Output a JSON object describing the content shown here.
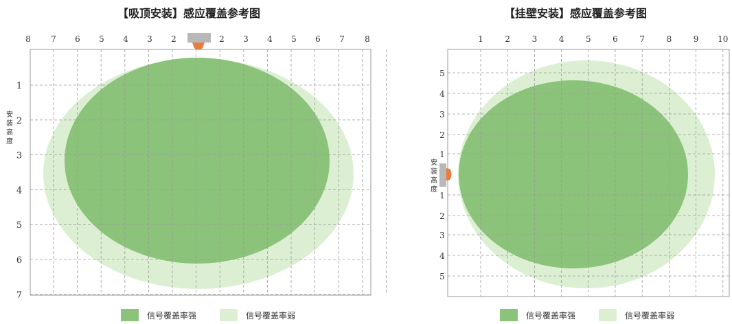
{
  "colors": {
    "strong": "#8cc37a",
    "weak": "#dcefd3",
    "grid": "#9a9a9a",
    "sensor_body": "#b8b8b8",
    "sensor_lens": "#ea7c3c"
  },
  "legend": {
    "strong_label": "信号覆盖率强",
    "weak_label": "信号覆盖率弱"
  },
  "ceiling": {
    "title": "【吸顶安装】感应覆盖参考图",
    "x_ticks": [
      "8",
      "7",
      "6",
      "5",
      "4",
      "3",
      "2",
      "",
      "2",
      "3",
      "4",
      "5",
      "6",
      "7",
      "8"
    ],
    "y_ticks": [
      "1",
      "2",
      "3",
      "4",
      "5",
      "6",
      "7"
    ],
    "side_label": [
      "安",
      "装",
      "高",
      "度"
    ]
  },
  "wall": {
    "title": "【挂壁安装】感应覆盖参考图",
    "x_ticks": [
      "1",
      "2",
      "3",
      "4",
      "5",
      "6",
      "7",
      "8",
      "9",
      "10"
    ],
    "y_ticks_top": [
      "5",
      "4",
      "3",
      "2",
      "1"
    ],
    "y_ticks_bottom": [
      "1",
      "2",
      "3",
      "4",
      "5"
    ],
    "side_label": [
      "安",
      "装",
      "高",
      "度"
    ]
  }
}
